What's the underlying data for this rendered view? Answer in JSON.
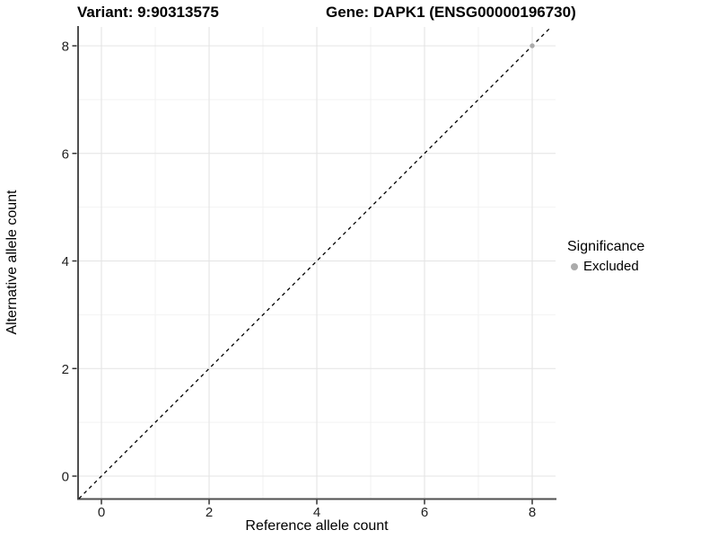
{
  "chart_data": {
    "type": "scatter",
    "titles": {
      "left": "Variant: 9:90313575",
      "right": "Gene: DAPK1 (ENSG00000196730)"
    },
    "xlabel": "Reference allele count",
    "ylabel": "Alternative allele count",
    "xlim": [
      -0.43,
      8.43
    ],
    "ylim": [
      -0.42,
      8.35
    ],
    "x_major_ticks": [
      0,
      2,
      4,
      6,
      8
    ],
    "x_minor_ticks": [
      1,
      3,
      5,
      7
    ],
    "y_major_ticks": [
      0,
      2,
      4,
      6,
      8
    ],
    "y_minor_ticks": [
      1,
      3,
      5,
      7
    ],
    "grid": true,
    "legend_position": "right",
    "identity_line": {
      "style": "dashed",
      "slope": 1,
      "intercept": 0,
      "color": "#000000"
    },
    "series": [
      {
        "name": "Excluded",
        "color": "#ababab",
        "point_radius": 2.7,
        "points": [
          {
            "x": 8,
            "y": 8
          }
        ]
      }
    ],
    "legend": {
      "title": "Significance",
      "items": [
        {
          "label": "Excluded",
          "color": "#ababab"
        }
      ]
    },
    "style": {
      "background": "#ffffff",
      "panel_background": "#ffffff",
      "major_grid": "#e4e4e4",
      "minor_grid": "#f2f2f2",
      "axis_line": "#4f4f4f",
      "tick_mark": "#333333",
      "tick_label": "#1f1f1f",
      "title_color": "#000000"
    }
  }
}
